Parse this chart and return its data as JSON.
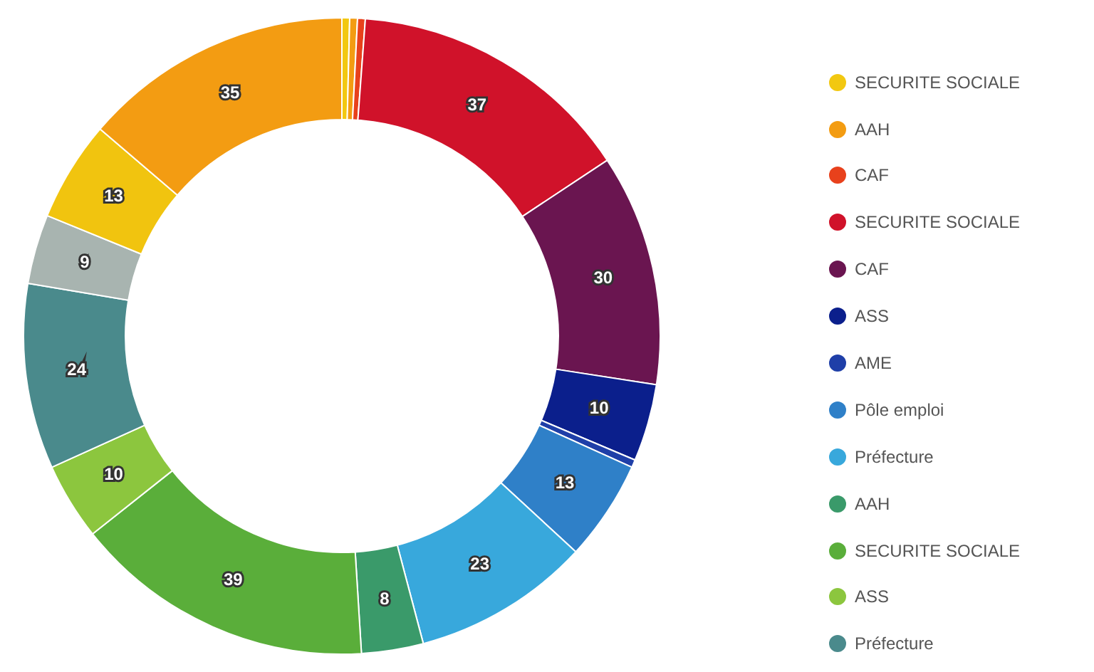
{
  "chart_data": {
    "type": "donut",
    "categories": [
      "SECURITE SOCIALE",
      "AAH",
      "CAF",
      "SECURITE SOCIALE",
      "CAF",
      "ASS",
      "AME",
      "Pôle emploi",
      "Préfecture",
      "AAH",
      "SECURITE SOCIALE",
      "ASS",
      "Préfecture",
      null,
      null,
      null
    ],
    "values": [
      1,
      1,
      1,
      37,
      30,
      10,
      1,
      13,
      23,
      8,
      39,
      10,
      24,
      9,
      13,
      35
    ],
    "colors": [
      "#f2c811",
      "#f39c12",
      "#e8411c",
      "#d0122a",
      "#6a1550",
      "#0b1f8c",
      "#1f3fa8",
      "#2f80c8",
      "#38a8dc",
      "#3a9a6a",
      "#5aae3a",
      "#8cc63e",
      "#4a8a8c",
      "#a8b4b0",
      "#f1c40f",
      "#f39c12"
    ],
    "value_labels": [
      null,
      null,
      null,
      "37",
      "30",
      "10",
      null,
      "13",
      "23",
      "8",
      "39",
      "10",
      "24",
      "9",
      "13",
      "35"
    ],
    "legend": "right"
  }
}
